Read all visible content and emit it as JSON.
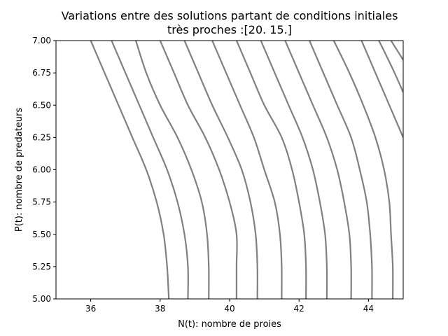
{
  "chart_data": {
    "type": "line",
    "title_line1": "Variations entre des solutions partant de conditions initiales",
    "title_line2": "très proches :[20. 15.]",
    "xlabel": "N(t): nombre de proies",
    "ylabel": "P(t): nombre de predateurs",
    "xlim": [
      35,
      45
    ],
    "ylim": [
      5.0,
      7.0
    ],
    "xticks": [
      {
        "value": 36,
        "label": "36"
      },
      {
        "value": 38,
        "label": "38"
      },
      {
        "value": 40,
        "label": "40"
      },
      {
        "value": 42,
        "label": "42"
      },
      {
        "value": 44,
        "label": "44"
      }
    ],
    "yticks": [
      {
        "value": 5.0,
        "label": "5.00"
      },
      {
        "value": 5.25,
        "label": "5.25"
      },
      {
        "value": 5.5,
        "label": "5.50"
      },
      {
        "value": 5.75,
        "label": "5.75"
      },
      {
        "value": 6.0,
        "label": "6.00"
      },
      {
        "value": 6.25,
        "label": "6.25"
      },
      {
        "value": 6.5,
        "label": "6.50"
      },
      {
        "value": 6.75,
        "label": "6.75"
      },
      {
        "value": 7.0,
        "label": "7.00"
      }
    ],
    "grid": false,
    "line_color": "#808080",
    "series": [
      {
        "x": [
          36.0,
          36.4,
          36.8,
          37.2,
          37.6,
          37.9,
          38.1,
          38.2,
          38.25
        ],
        "y": [
          7.0,
          6.75,
          6.5,
          6.25,
          6.0,
          5.75,
          5.5,
          5.25,
          5.0
        ]
      },
      {
        "x": [
          36.6,
          37.0,
          37.4,
          37.8,
          38.2,
          38.5,
          38.7,
          38.8,
          38.8
        ],
        "y": [
          7.0,
          6.75,
          6.5,
          6.25,
          6.0,
          5.75,
          5.5,
          5.25,
          5.0
        ]
      },
      {
        "x": [
          37.3,
          37.6,
          38.0,
          38.5,
          38.9,
          39.2,
          39.35,
          39.4,
          39.4
        ],
        "y": [
          7.0,
          6.75,
          6.5,
          6.25,
          6.0,
          5.75,
          5.5,
          5.25,
          5.0
        ]
      },
      {
        "x": [
          38.0,
          38.4,
          38.8,
          39.3,
          39.7,
          40.0,
          40.2,
          40.2,
          40.2
        ],
        "y": [
          7.0,
          6.75,
          6.5,
          6.25,
          6.0,
          5.75,
          5.5,
          5.25,
          5.0
        ]
      },
      {
        "x": [
          38.7,
          39.1,
          39.5,
          39.95,
          40.35,
          40.6,
          40.75,
          40.8,
          40.8
        ],
        "y": [
          7.0,
          6.75,
          6.5,
          6.25,
          6.0,
          5.75,
          5.5,
          5.25,
          5.0
        ]
      },
      {
        "x": [
          39.5,
          39.9,
          40.3,
          40.7,
          41.0,
          41.3,
          41.45,
          41.5,
          41.5
        ],
        "y": [
          7.0,
          6.75,
          6.5,
          6.25,
          6.0,
          5.75,
          5.5,
          5.25,
          5.0
        ]
      },
      {
        "x": [
          40.2,
          40.6,
          41.0,
          41.5,
          41.8,
          42.0,
          42.15,
          42.2,
          42.2
        ],
        "y": [
          7.0,
          6.75,
          6.5,
          6.25,
          6.0,
          5.75,
          5.5,
          5.25,
          5.0
        ]
      },
      {
        "x": [
          40.9,
          41.3,
          41.7,
          42.1,
          42.4,
          42.6,
          42.75,
          42.8,
          42.8
        ],
        "y": [
          7.0,
          6.75,
          6.5,
          6.25,
          6.0,
          5.75,
          5.5,
          5.25,
          5.0
        ]
      },
      {
        "x": [
          41.6,
          42.0,
          42.4,
          42.8,
          43.1,
          43.3,
          43.45,
          43.5,
          43.5
        ],
        "y": [
          7.0,
          6.75,
          6.5,
          6.25,
          6.0,
          5.75,
          5.5,
          5.25,
          5.0
        ]
      },
      {
        "x": [
          42.3,
          42.7,
          43.1,
          43.5,
          43.75,
          43.95,
          44.05,
          44.1,
          44.1
        ],
        "y": [
          7.0,
          6.75,
          6.5,
          6.25,
          6.0,
          5.75,
          5.5,
          5.25,
          5.0
        ]
      },
      {
        "x": [
          43.0,
          43.45,
          43.85,
          44.2,
          44.45,
          44.6,
          44.65,
          44.7,
          44.7
        ],
        "y": [
          7.0,
          6.75,
          6.5,
          6.25,
          6.0,
          5.75,
          5.5,
          5.25,
          5.0
        ]
      },
      {
        "x": [
          43.8,
          44.2,
          44.6,
          45.0
        ],
        "y": [
          7.0,
          6.75,
          6.5,
          6.25
        ]
      },
      {
        "x": [
          44.3,
          44.7,
          45.0
        ],
        "y": [
          7.0,
          6.78,
          6.6
        ]
      },
      {
        "x": [
          44.65,
          45.0
        ],
        "y": [
          7.0,
          6.85
        ]
      }
    ]
  }
}
